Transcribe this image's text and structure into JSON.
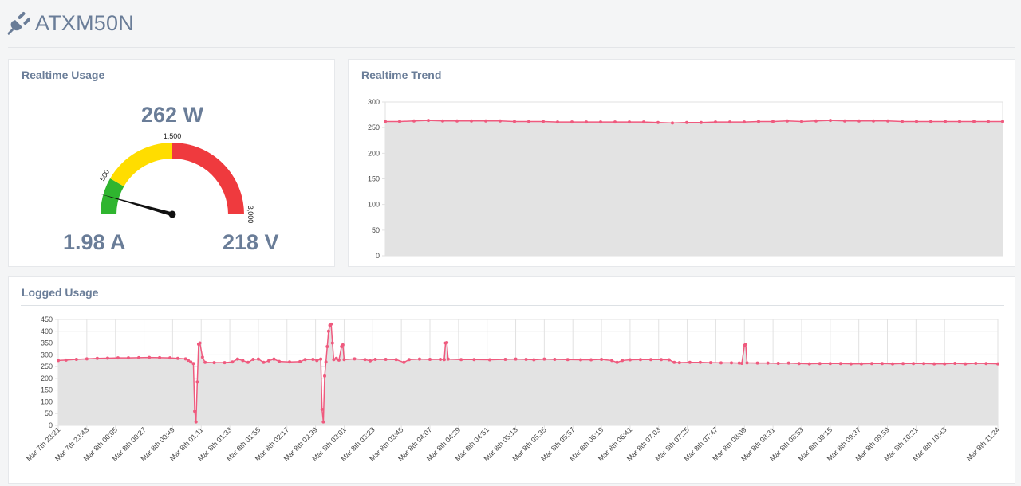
{
  "app": {
    "title": "ATXM50N",
    "icon": "plug-icon"
  },
  "colors": {
    "heading": "#6a7d98",
    "line": "#ef5a7e",
    "area": "#e3e3e3",
    "gauge_green": "#2fb52f",
    "gauge_yellow": "#ffdd00",
    "gauge_red": "#ef3a3e"
  },
  "realtime_usage": {
    "title": "Realtime Usage",
    "watts": "262 W",
    "amps": "1.98 A",
    "volts": "218 V",
    "gauge": {
      "min": 0,
      "max": 3000,
      "value": 262,
      "ticks": [
        {
          "label": "500",
          "value": 500
        },
        {
          "label": "1,500",
          "value": 1500
        },
        {
          "label": "3,000",
          "value": 3000
        }
      ],
      "bands": [
        {
          "from": 0,
          "to": 500,
          "color": "#2fb52f"
        },
        {
          "from": 500,
          "to": 1500,
          "color": "#ffdd00"
        },
        {
          "from": 1500,
          "to": 3000,
          "color": "#ef3a3e"
        }
      ]
    }
  },
  "realtime_trend": {
    "title": "Realtime Trend",
    "chart_data": {
      "type": "area",
      "ylim": [
        0,
        300
      ],
      "yticks": [
        0,
        50,
        100,
        150,
        200,
        250,
        300
      ],
      "grid": true,
      "values": [
        262,
        262,
        263,
        264,
        263,
        263,
        263,
        263,
        263,
        262,
        262,
        262,
        261,
        261,
        261,
        261,
        261,
        261,
        261,
        260,
        259,
        260,
        260,
        261,
        261,
        261,
        262,
        262,
        263,
        262,
        263,
        264,
        263,
        263,
        263,
        263,
        262,
        262,
        262,
        262,
        262,
        262,
        262,
        262
      ]
    }
  },
  "logged_usage": {
    "title": "Logged Usage",
    "chart_data": {
      "type": "area",
      "ylim": [
        0,
        450
      ],
      "yticks": [
        0,
        50,
        100,
        150,
        200,
        250,
        300,
        350,
        400,
        450
      ],
      "grid": true,
      "xlabels": [
        "Mar 7th 23:21",
        "Mar 7th 23:43",
        "Mar 8th 00:05",
        "Mar 8th 00:27",
        "Mar 8th 00:49",
        "Mar 8th 01:11",
        "Mar 8th 01:33",
        "Mar 8th 01:55",
        "Mar 8th 02:17",
        "Mar 8th 02:39",
        "Mar 8th 03:01",
        "Mar 8th 03:23",
        "Mar 8th 03:45",
        "Mar 8th 04:07",
        "Mar 8th 04:29",
        "Mar 8th 04:51",
        "Mar 8th 05:13",
        "Mar 8th 05:35",
        "Mar 8th 05:57",
        "Mar 8th 06:19",
        "Mar 8th 06:41",
        "Mar 8th 07:03",
        "Mar 8th 07:25",
        "Mar 8th 07:47",
        "Mar 8th 08:09",
        "Mar 8th 08:31",
        "Mar 8th 08:53",
        "Mar 8th 09:15",
        "Mar 8th 09:37",
        "Mar 8th 09:59",
        "Mar 8th 10:21",
        "Mar 8th 10:43",
        "Mar 8th 11:24"
      ],
      "x_minutes": [
        0,
        22,
        44,
        66,
        88,
        110,
        132,
        154,
        176,
        198,
        220,
        242,
        264,
        286,
        308,
        330,
        352,
        374,
        396,
        418,
        440,
        462,
        484,
        506,
        528,
        550,
        572,
        594,
        616,
        638,
        660,
        682,
        723
      ],
      "series_points": [
        [
          0,
          276
        ],
        [
          6,
          278
        ],
        [
          14,
          281
        ],
        [
          22,
          283
        ],
        [
          30,
          285
        ],
        [
          38,
          286
        ],
        [
          46,
          287
        ],
        [
          54,
          287
        ],
        [
          62,
          288
        ],
        [
          70,
          289
        ],
        [
          78,
          288
        ],
        [
          86,
          287
        ],
        [
          92,
          285
        ],
        [
          98,
          283
        ],
        [
          100,
          277
        ],
        [
          102,
          270
        ],
        [
          104,
          263
        ],
        [
          105,
          60
        ],
        [
          106,
          15
        ],
        [
          107,
          185
        ],
        [
          108,
          345
        ],
        [
          109,
          350
        ],
        [
          111,
          290
        ],
        [
          113,
          268
        ],
        [
          120,
          267
        ],
        [
          128,
          267
        ],
        [
          134,
          270
        ],
        [
          138,
          282
        ],
        [
          142,
          276
        ],
        [
          146,
          268
        ],
        [
          150,
          281
        ],
        [
          154,
          282
        ],
        [
          158,
          268
        ],
        [
          162,
          275
        ],
        [
          166,
          282
        ],
        [
          170,
          272
        ],
        [
          178,
          270
        ],
        [
          186,
          271
        ],
        [
          190,
          280
        ],
        [
          196,
          281
        ],
        [
          199,
          276
        ],
        [
          202,
          282
        ],
        [
          203,
          68
        ],
        [
          204,
          15
        ],
        [
          205,
          210
        ],
        [
          206,
          270
        ],
        [
          207,
          335
        ],
        [
          208,
          400
        ],
        [
          209,
          425
        ],
        [
          210,
          430
        ],
        [
          211,
          350
        ],
        [
          212,
          280
        ],
        [
          214,
          285
        ],
        [
          216,
          278
        ],
        [
          218,
          335
        ],
        [
          219,
          342
        ],
        [
          220,
          280
        ],
        [
          228,
          283
        ],
        [
          236,
          280
        ],
        [
          240,
          275
        ],
        [
          244,
          281
        ],
        [
          252,
          281
        ],
        [
          260,
          280
        ],
        [
          266,
          268
        ],
        [
          270,
          280
        ],
        [
          278,
          282
        ],
        [
          286,
          281
        ],
        [
          294,
          281
        ],
        [
          297,
          280
        ],
        [
          298,
          350
        ],
        [
          299,
          352
        ],
        [
          300,
          282
        ],
        [
          310,
          280
        ],
        [
          320,
          280
        ],
        [
          332,
          279
        ],
        [
          344,
          281
        ],
        [
          352,
          282
        ],
        [
          360,
          281
        ],
        [
          366,
          279
        ],
        [
          374,
          282
        ],
        [
          382,
          281
        ],
        [
          392,
          280
        ],
        [
          402,
          279
        ],
        [
          410,
          279
        ],
        [
          418,
          281
        ],
        [
          426,
          276
        ],
        [
          430,
          268
        ],
        [
          434,
          276
        ],
        [
          440,
          279
        ],
        [
          448,
          280
        ],
        [
          456,
          280
        ],
        [
          464,
          280
        ],
        [
          470,
          279
        ],
        [
          474,
          268
        ],
        [
          478,
          267
        ],
        [
          486,
          268
        ],
        [
          494,
          268
        ],
        [
          502,
          267
        ],
        [
          510,
          266
        ],
        [
          518,
          266
        ],
        [
          524,
          265
        ],
        [
          526,
          264
        ],
        [
          528,
          340
        ],
        [
          529,
          345
        ],
        [
          530,
          266
        ],
        [
          538,
          265
        ],
        [
          546,
          265
        ],
        [
          554,
          264
        ],
        [
          562,
          265
        ],
        [
          570,
          263
        ],
        [
          578,
          262
        ],
        [
          586,
          263
        ],
        [
          594,
          263
        ],
        [
          602,
          263
        ],
        [
          610,
          262
        ],
        [
          618,
          262
        ],
        [
          626,
          263
        ],
        [
          634,
          263
        ],
        [
          642,
          262
        ],
        [
          650,
          263
        ],
        [
          658,
          263
        ],
        [
          666,
          263
        ],
        [
          674,
          262
        ],
        [
          682,
          262
        ],
        [
          690,
          264
        ],
        [
          698,
          262
        ],
        [
          706,
          264
        ],
        [
          714,
          263
        ],
        [
          723,
          262
        ]
      ]
    }
  }
}
